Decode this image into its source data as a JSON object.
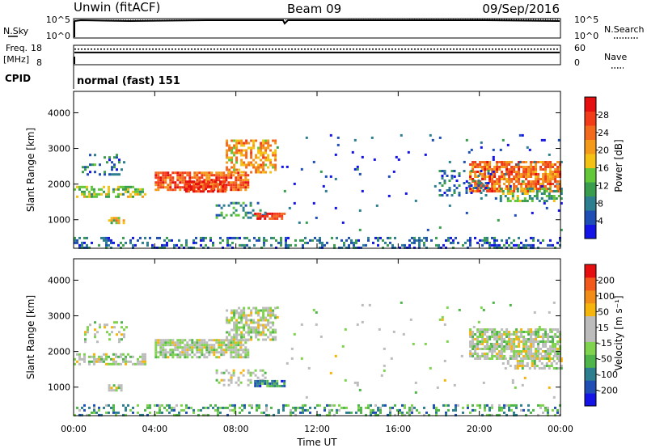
{
  "header": {
    "station": "Unwin (fitACF)",
    "beam": "Beam 09",
    "date": "09/Sep/2016"
  },
  "panels": {
    "nsky": {
      "label": "N.Sky",
      "ticks": [
        "10^5",
        "10^0"
      ],
      "right_label": "N.Search",
      "right_ticks": [
        "10^5",
        "10^0"
      ]
    },
    "freq": {
      "label_top": "Freq.",
      "label_bottom": "[MHz]",
      "ticks": [
        "18",
        "8"
      ],
      "right_label": "Nave",
      "right_ticks": [
        "60",
        "0"
      ],
      "dotted_level": 0.8,
      "solid_level": 0.63
    },
    "cpid": {
      "label": "CPID",
      "value": "normal (fast) 151"
    }
  },
  "colors": {
    "power_scale": [
      "#1414e6",
      "#1f4fb4",
      "#2d7e8e",
      "#3a9d4e",
      "#62c83a",
      "#f4c214",
      "#f39a1b",
      "#f26a1e",
      "#f23b19",
      "#e60f0f"
    ],
    "velocity_scale": [
      "#1414e6",
      "#1f4fb4",
      "#2d7e8e",
      "#4fb54a",
      "#7fd34e",
      "#bcbcbc",
      "#bcbcbc",
      "#f5b50c",
      "#f28d1a",
      "#f25a1d",
      "#e60f0f"
    ]
  },
  "chart_data": [
    {
      "type": "heatmap",
      "panel": "power",
      "x_ticks": [
        "00:00",
        "04:00",
        "08:00",
        "12:00",
        "16:00",
        "20:00",
        "00:00"
      ],
      "xlim": [
        0,
        24
      ],
      "ylabel": "Slant Range [km]",
      "y_ticks": [
        1000,
        2000,
        3000,
        4000
      ],
      "ylim": [
        200,
        4600
      ],
      "colorbar": {
        "label": "Power [dB]",
        "range": [
          0,
          32
        ],
        "ticks": [
          4,
          8,
          12,
          16,
          20,
          24,
          28
        ]
      },
      "regions": [
        {
          "t": [
            0.0,
            3.5
          ],
          "r": [
            1650,
            1950
          ],
          "level": 0.45,
          "density": 0.55
        },
        {
          "t": [
            0.4,
            2.6
          ],
          "r": [
            2250,
            2850
          ],
          "level": 0.25,
          "density": 0.25
        },
        {
          "t": [
            1.7,
            2.5
          ],
          "r": [
            880,
            1080
          ],
          "level": 0.55,
          "density": 0.6
        },
        {
          "t": [
            4.0,
            8.6
          ],
          "r": [
            1850,
            2350
          ],
          "level": 0.78,
          "density": 0.8
        },
        {
          "t": [
            5.5,
            7.5
          ],
          "r": [
            1800,
            2100
          ],
          "level": 0.9,
          "density": 0.7
        },
        {
          "t": [
            7.5,
            10.0
          ],
          "r": [
            2300,
            3250
          ],
          "level": 0.65,
          "density": 0.6
        },
        {
          "t": [
            7.0,
            9.5
          ],
          "r": [
            1050,
            1500
          ],
          "level": 0.3,
          "density": 0.3
        },
        {
          "t": [
            8.9,
            10.4
          ],
          "r": [
            1000,
            1200
          ],
          "level": 0.88,
          "density": 0.8
        },
        {
          "t": [
            0.0,
            24.0
          ],
          "r": [
            230,
            520
          ],
          "level": 0.2,
          "density": 0.35
        },
        {
          "t": [
            19.5,
            24.0
          ],
          "r": [
            1800,
            2650
          ],
          "level": 0.75,
          "density": 0.75
        },
        {
          "t": [
            21.0,
            24.0
          ],
          "r": [
            1550,
            1900
          ],
          "level": 0.4,
          "density": 0.45
        },
        {
          "t": [
            18.0,
            20.5
          ],
          "r": [
            1700,
            2400
          ],
          "level": 0.2,
          "density": 0.25
        },
        {
          "t": [
            10.0,
            24.0
          ],
          "r": [
            700,
            3400
          ],
          "level": 0.15,
          "density": 0.02
        }
      ]
    },
    {
      "type": "heatmap",
      "panel": "velocity",
      "x_ticks": [
        "00:00",
        "04:00",
        "08:00",
        "12:00",
        "16:00",
        "20:00",
        "00:00"
      ],
      "xlim": [
        0,
        24
      ],
      "xlabel": "Time UT",
      "ylabel": "Slant Range [km]",
      "y_ticks": [
        1000,
        2000,
        3000,
        4000
      ],
      "ylim": [
        200,
        4600
      ],
      "colorbar": {
        "label": "Velocity [m s⁻¹]",
        "ticks": [
          "200",
          "100",
          "50",
          "15",
          "-15",
          "-50",
          "-100",
          "-200"
        ]
      },
      "regions": [
        {
          "t": [
            0.0,
            3.5
          ],
          "r": [
            1650,
            1950
          ],
          "level": 0.5,
          "density": 0.55
        },
        {
          "t": [
            0.4,
            2.6
          ],
          "r": [
            2250,
            2850
          ],
          "level": 0.5,
          "density": 0.25
        },
        {
          "t": [
            1.7,
            2.5
          ],
          "r": [
            880,
            1080
          ],
          "level": 0.5,
          "density": 0.6
        },
        {
          "t": [
            4.0,
            8.6
          ],
          "r": [
            1850,
            2350
          ],
          "level": 0.5,
          "density": 0.8
        },
        {
          "t": [
            7.5,
            10.0
          ],
          "r": [
            2300,
            3250
          ],
          "level": 0.5,
          "density": 0.6
        },
        {
          "t": [
            7.0,
            9.5
          ],
          "r": [
            1050,
            1500
          ],
          "level": 0.5,
          "density": 0.3
        },
        {
          "t": [
            8.9,
            10.4
          ],
          "r": [
            1000,
            1200
          ],
          "level": 0.25,
          "density": 0.85
        },
        {
          "t": [
            0.0,
            24.0
          ],
          "r": [
            230,
            520
          ],
          "level": 0.32,
          "density": 0.35
        },
        {
          "t": [
            19.5,
            24.0
          ],
          "r": [
            1800,
            2650
          ],
          "level": 0.5,
          "density": 0.75
        },
        {
          "t": [
            21.0,
            24.0
          ],
          "r": [
            1550,
            1900
          ],
          "level": 0.5,
          "density": 0.45
        },
        {
          "t": [
            10.0,
            24.0
          ],
          "r": [
            700,
            3400
          ],
          "level": 0.5,
          "density": 0.02
        }
      ]
    }
  ]
}
